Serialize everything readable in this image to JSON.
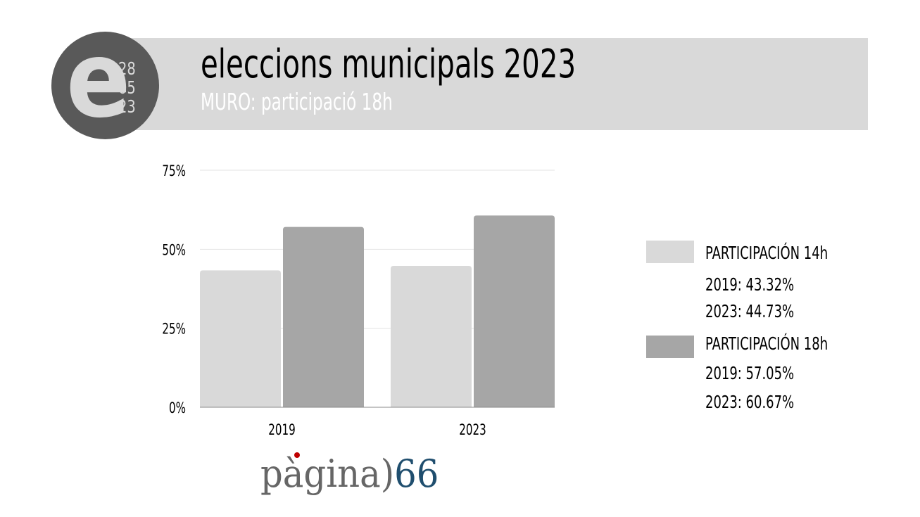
{
  "header": {
    "logo_letter": "e",
    "logo_date": [
      "28",
      "05",
      "23"
    ],
    "title": "eleccions municipals 2023",
    "subtitle": "MURO: participació 18h"
  },
  "chart_data": {
    "type": "bar",
    "categories": [
      "2019",
      "2023"
    ],
    "series": [
      {
        "name": "PARTICIPACIÓN 14h",
        "values": [
          43.32,
          44.73
        ],
        "color": "#d9d9d9"
      },
      {
        "name": "PARTICIPACIÓN 18h",
        "values": [
          57.05,
          60.67
        ],
        "color": "#a6a6a6"
      }
    ],
    "ylim": [
      0,
      75
    ],
    "yticks": [
      0,
      25,
      50,
      75
    ],
    "ytick_labels": [
      "0%",
      "25%",
      "50%",
      "75%"
    ],
    "grid": true,
    "legend_position": "right"
  },
  "legend": {
    "entries": [
      {
        "label": "PARTICIPACIÓN 14h",
        "color": "#d9d9d9",
        "lines": [
          "2019: 43.32%",
          "2023: 44.73%"
        ]
      },
      {
        "label": "PARTICIPACIÓN 18h",
        "color": "#a6a6a6",
        "lines": [
          "2019:  57.05%",
          "2023: 60.67%"
        ]
      }
    ]
  },
  "brand": {
    "word": "pàgina",
    "paren": ")",
    "number": "66"
  }
}
